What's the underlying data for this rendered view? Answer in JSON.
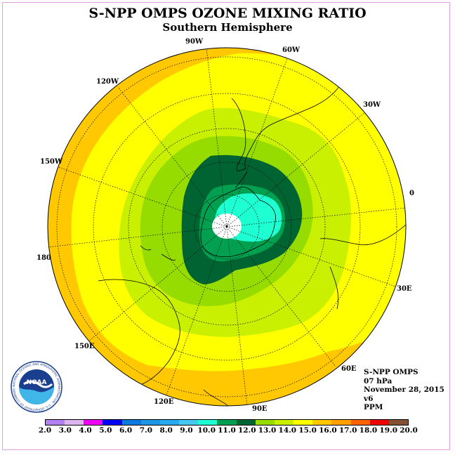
{
  "title": "S-NPP OMPS OZONE MIXING RATIO",
  "subtitle": "Southern Hemisphere",
  "longitude_labels": {
    "lon_90w": "90W",
    "lon_60w": "60W",
    "lon_30w": "30W",
    "lon_120w": "120W",
    "lon_150w": "150W",
    "lon_0": "0",
    "lon_180": "180",
    "lon_30e": "30E",
    "lon_150e": "150E",
    "lon_60e": "60E",
    "lon_120e": "120E",
    "lon_90e": "90E"
  },
  "info": {
    "instrument": "S-NPP OMPS",
    "level": "07 hPa",
    "version": "v6",
    "date": "November 28, 2015",
    "units": "PPM"
  },
  "logo": {
    "text": "NOAA",
    "ring_text": "NATIONAL OCEANIC AND ATMOSPHERIC ADMINISTRATION · U.S. DEPARTMENT OF COMMERCE"
  },
  "colorbar": {
    "ticks": [
      "2.0",
      "3.0",
      "4.0",
      "5.0",
      "6.0",
      "7.0",
      "8.0",
      "9.0",
      "10.0",
      "11.0",
      "12.0",
      "13.0",
      "14.0",
      "15.0",
      "16.0",
      "17.0",
      "18.0",
      "19.0",
      "20.0"
    ],
    "colors": [
      "#b482f0",
      "#dcb4f0",
      "#f000f0",
      "#0000f0",
      "#0a78dc",
      "#1e96e6",
      "#28aaf0",
      "#46c8f0",
      "#1effd2",
      "#00a050",
      "#006432",
      "#96dc00",
      "#c8f000",
      "#ffff00",
      "#ffc800",
      "#ffa000",
      "#ff6400",
      "#f00000",
      "#825032"
    ]
  },
  "colors": {
    "ring_outer": "#ffc800",
    "band_15_16": "#ffff00",
    "band_14_15": "#c8f000",
    "band_13_14": "#96dc00",
    "band_11_12": "#006432",
    "band_10_11": "#00a050",
    "band_9_10": "#1effd2",
    "pole": "#ffffff"
  }
}
